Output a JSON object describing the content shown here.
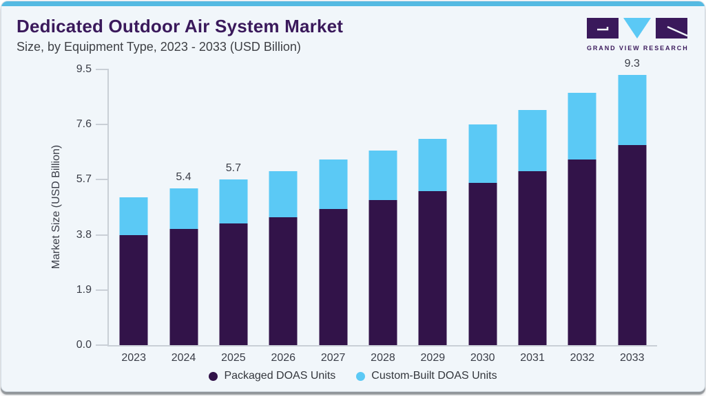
{
  "header": {
    "title": "Dedicated Outdoor Air System Market",
    "subtitle": "Size, by Equipment Type, 2023 - 2033 (USD Billion)"
  },
  "logo": {
    "text": "GRAND VIEW RESEARCH"
  },
  "colors": {
    "accent_bar": "#55BAE2",
    "packaged": "#321349",
    "custom_built": "#5BC9F5",
    "title_purple": "#3A195B",
    "card_background": "#F1F6FA",
    "axis_gray": "#C9CFD6"
  },
  "chart_data": {
    "type": "bar",
    "stacked": true,
    "title": "Dedicated Outdoor Air System Market Size, by Equipment Type, 2023 - 2033 (USD Billion)",
    "categories": [
      "2023",
      "2024",
      "2025",
      "2026",
      "2027",
      "2028",
      "2029",
      "2030",
      "2031",
      "2032",
      "2033"
    ],
    "series": [
      {
        "name": "Packaged DOAS Units",
        "color": "#321349",
        "values": [
          3.8,
          4.0,
          4.2,
          4.4,
          4.7,
          5.0,
          5.3,
          5.6,
          6.0,
          6.4,
          6.9
        ]
      },
      {
        "name": "Custom-Built DOAS Units",
        "color": "#5BC9F5",
        "values": [
          1.3,
          1.4,
          1.5,
          1.6,
          1.7,
          1.7,
          1.8,
          2.0,
          2.1,
          2.3,
          2.4
        ]
      }
    ],
    "totals": [
      5.1,
      5.4,
      5.7,
      6.0,
      6.4,
      6.7,
      7.1,
      7.6,
      8.1,
      8.7,
      9.3
    ],
    "bar_labels": [
      "",
      "5.4",
      "5.7",
      "",
      "",
      "",
      "",
      "",
      "",
      "",
      "9.3"
    ],
    "xlabel": "",
    "ylabel": "Market Size (USD Billion)",
    "yticks": [
      "0.0",
      "1.9",
      "3.8",
      "5.7",
      "7.6",
      "9.5"
    ],
    "ylim": [
      0,
      9.5
    ],
    "grid": false,
    "legend_position": "bottom"
  },
  "legend": {
    "items": [
      {
        "label": "Packaged DOAS Units",
        "color": "#321349"
      },
      {
        "label": "Custom-Built DOAS Units",
        "color": "#5BC9F5"
      }
    ]
  }
}
